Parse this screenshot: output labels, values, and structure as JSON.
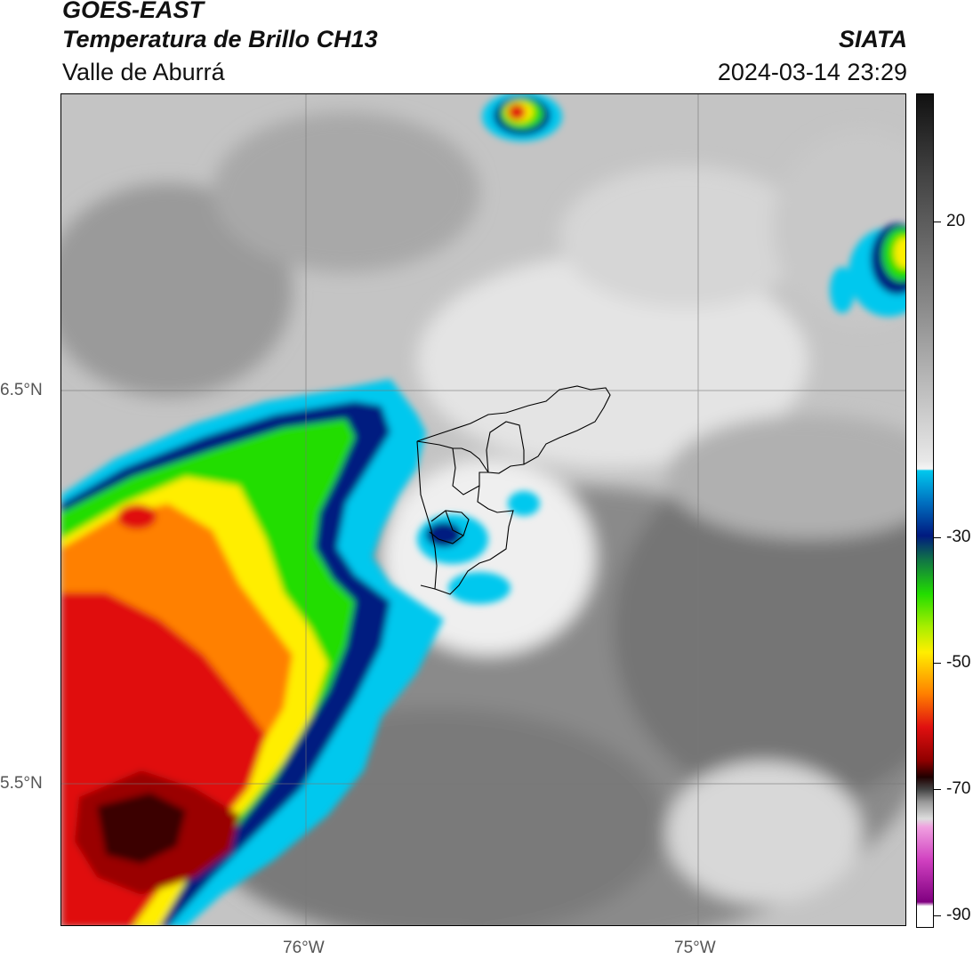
{
  "header": {
    "satellite": "GOES-EAST",
    "product": "Temperatura de Brillo CH13",
    "region": "Valle de Aburrá",
    "organization": "SIATA",
    "datetime": "2024-03-14 23:29"
  },
  "map": {
    "lat_labels": [
      "6.5°N",
      "5.5°N"
    ],
    "lon_labels": [
      "76°W",
      "75°W"
    ]
  },
  "colorbar": {
    "tick_labels": [
      "20",
      "-30",
      "-50",
      "-70",
      "-90"
    ],
    "colors": {
      "cold_core": "#3a0000",
      "red": "#e01010",
      "orange": "#ff8000",
      "yellow": "#ffee00",
      "green": "#22dd00",
      "navy": "#001a80",
      "cyan": "#00c8ee",
      "light_gray": "#e8e8e8",
      "dark_gray": "#707070",
      "magenta": "#d040c0"
    }
  }
}
